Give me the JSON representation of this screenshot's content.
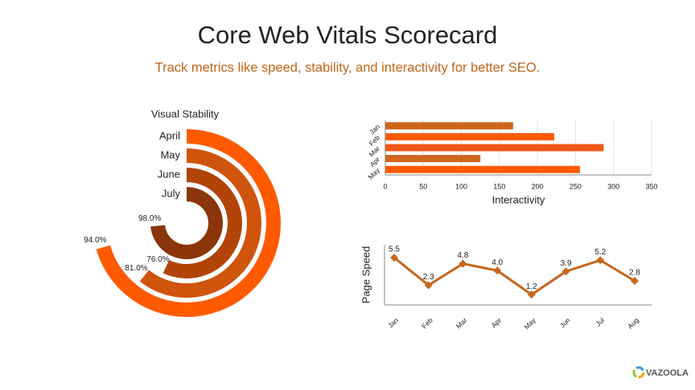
{
  "header": {
    "title": "Core Web Vitals Scorecard",
    "subtitle": "Track metrics like speed, stability, and interactivity for better SEO."
  },
  "chart_data": [
    {
      "type": "radial_bar",
      "title": "Visual Stability",
      "categories": [
        "April",
        "May",
        "June",
        "July"
      ],
      "values": [
        94,
        81,
        76,
        98
      ],
      "value_labels": [
        "94.0%",
        "81.0%",
        "76.0%",
        "98.0%"
      ],
      "colors": [
        "#ff5a00",
        "#cf540c",
        "#b24408",
        "#8a360a"
      ],
      "rlim": [
        0,
        100
      ]
    },
    {
      "type": "hbar",
      "xlabel": "Interactivity",
      "categories": [
        "Jan",
        "Feb",
        "Mar",
        "Apr",
        "May"
      ],
      "values": [
        168,
        222,
        287,
        125,
        256
      ],
      "colors": [
        "#d0661a",
        "#ff5a00",
        "#f2581a",
        "#d0661a",
        "#ff5a00"
      ],
      "xlim": [
        0,
        350
      ],
      "xticks": [
        0,
        50,
        100,
        150,
        200,
        250,
        300,
        350
      ],
      "grid": true
    },
    {
      "type": "line",
      "ylabel": "Page Speed",
      "categories": [
        "Jan",
        "Feb",
        "Mar",
        "Apr",
        "May",
        "Jun",
        "Jul",
        "Aug"
      ],
      "values": [
        5.5,
        2.3,
        4.8,
        4.0,
        1.2,
        3.9,
        5.2,
        2.8
      ],
      "value_labels": [
        "5.5",
        "2.3",
        "4.8",
        "4.0",
        "1.2",
        "3.9",
        "5.2",
        "2.8"
      ],
      "color": "#c8661c",
      "ylim": [
        0,
        7
      ]
    }
  ],
  "logo": "VAZOOLA"
}
